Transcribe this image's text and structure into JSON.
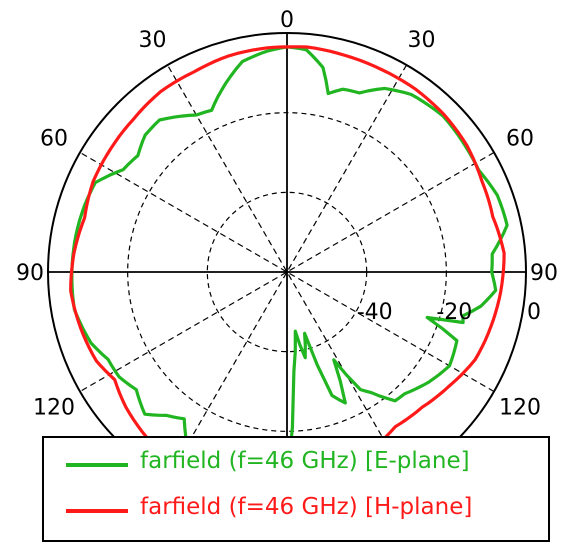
{
  "chart_data": {
    "type": "polar-line",
    "angle_ticks": [
      {
        "label": "0",
        "angle": 0
      },
      {
        "label": "30",
        "angle": 30
      },
      {
        "label": "30",
        "angle": -30
      },
      {
        "label": "60",
        "angle": 60
      },
      {
        "label": "60",
        "angle": -60
      },
      {
        "label": "90",
        "angle": 90
      },
      {
        "label": "90",
        "angle": -90
      },
      {
        "label": "120",
        "angle": 120
      },
      {
        "label": "120",
        "angle": -120
      }
    ],
    "radial_ticks": [
      {
        "label": "-40",
        "value": -40
      },
      {
        "label": "-20",
        "value": -20
      },
      {
        "label": "0",
        "value": 0
      }
    ],
    "rlim": [
      -60,
      0
    ],
    "grid": true,
    "legend_position": "bottom",
    "series": [
      {
        "name": "farfield (f=46 GHz) [E-plane]",
        "color": "#22b522",
        "points": [
          [
            -180,
            -6.9
          ],
          [
            -170,
            -7.2
          ],
          [
            -160,
            -7.0
          ],
          [
            -152,
            -7.8
          ],
          [
            -145,
            -15.0
          ],
          [
            -140,
            -13.0
          ],
          [
            -135,
            -9.5
          ],
          [
            -128,
            -12.0
          ],
          [
            -122,
            -10.3
          ],
          [
            -116,
            -10.0
          ],
          [
            -110,
            -7.7
          ],
          [
            -100,
            -5.8
          ],
          [
            -90,
            -6.0
          ],
          [
            -80,
            -6.2
          ],
          [
            -72,
            -6.5
          ],
          [
            -65,
            -6.9
          ],
          [
            -58,
            -11.5
          ],
          [
            -52,
            -12.5
          ],
          [
            -46,
            -10.5
          ],
          [
            -40,
            -10.2
          ],
          [
            -30,
            -14.5
          ],
          [
            -25,
            -15.2
          ],
          [
            -18,
            -10.2
          ],
          [
            -12,
            -6.0
          ],
          [
            -5,
            -4.3
          ],
          [
            0,
            -3.5
          ],
          [
            5,
            -4.0
          ],
          [
            10,
            -7.9
          ],
          [
            13,
            -14.0
          ],
          [
            17,
            -12.0
          ],
          [
            22,
            -11.5
          ],
          [
            28,
            -7.8
          ],
          [
            35,
            -5.6
          ],
          [
            45,
            -4.6
          ],
          [
            55,
            -5.2
          ],
          [
            62,
            -5.5
          ],
          [
            70,
            -3.8
          ],
          [
            78,
            -3.5
          ],
          [
            85,
            -8.3
          ],
          [
            90,
            -8.6
          ],
          [
            95,
            -7.4
          ],
          [
            100,
            -10.6
          ],
          [
            104,
            -14.5
          ],
          [
            106,
            -14.0
          ],
          [
            108,
            -23.0
          ],
          [
            112,
            -14.0
          ],
          [
            120,
            -12.9
          ],
          [
            128,
            -15.0
          ],
          [
            136,
            -17.5
          ],
          [
            140,
            -17.8
          ],
          [
            145,
            -23.0
          ],
          [
            148,
            -25.2
          ],
          [
            152,
            -35.0
          ],
          [
            156,
            -24.0
          ],
          [
            160,
            -27.0
          ],
          [
            164,
            -44.0
          ],
          [
            168,
            -38.0
          ],
          [
            172,
            -45.0
          ],
          [
            176,
            -35.0
          ],
          [
            180,
            -6.9
          ]
        ]
      },
      {
        "name": "farfield (f=46 GHz) [H-plane]",
        "color": "#ff1a1a",
        "points": [
          [
            -180,
            -6.5
          ],
          [
            -170,
            -7.0
          ],
          [
            -160,
            -6.3
          ],
          [
            -150,
            -6.9
          ],
          [
            -140,
            -5.5
          ],
          [
            -130,
            -7.2
          ],
          [
            -122,
            -9.0
          ],
          [
            -115,
            -7.2
          ],
          [
            -105,
            -6.3
          ],
          [
            -95,
            -5.5
          ],
          [
            -85,
            -6.3
          ],
          [
            -75,
            -7.4
          ],
          [
            -65,
            -6.3
          ],
          [
            -55,
            -6.0
          ],
          [
            -45,
            -5.6
          ],
          [
            -35,
            -4.7
          ],
          [
            -25,
            -4.6
          ],
          [
            -15,
            -3.8
          ],
          [
            -5,
            -3.5
          ],
          [
            0,
            -3.5
          ],
          [
            5,
            -3.3
          ],
          [
            15,
            -3.7
          ],
          [
            25,
            -3.9
          ],
          [
            35,
            -3.9
          ],
          [
            45,
            -4.2
          ],
          [
            55,
            -4.8
          ],
          [
            65,
            -6.0
          ],
          [
            75,
            -6.5
          ],
          [
            85,
            -5.3
          ],
          [
            95,
            -6.1
          ],
          [
            105,
            -7.0
          ],
          [
            115,
            -7.9
          ],
          [
            125,
            -10.2
          ],
          [
            135,
            -12.0
          ],
          [
            145,
            -12.6
          ],
          [
            155,
            -10.5
          ],
          [
            165,
            -7.5
          ],
          [
            172,
            -6.8
          ],
          [
            180,
            -6.5
          ]
        ]
      }
    ]
  }
}
